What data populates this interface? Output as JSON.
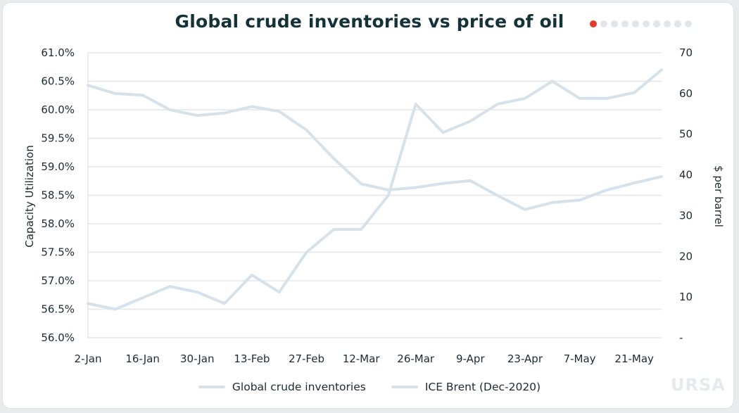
{
  "header": {
    "title": "Global crude inventories vs price of oil"
  },
  "pager": {
    "count": 10,
    "active_index": 0,
    "active_color": "#e5392c",
    "inactive_color": "#e3e6e8"
  },
  "logo": {
    "text": "URSA"
  },
  "colors": {
    "line": "#d6e1ea",
    "grid": "#e4e6e8",
    "text": "#1e2a30",
    "title": "#14323a"
  },
  "chart_data": {
    "type": "line",
    "title": "Global crude inventories vs price of oil",
    "xlabel": "",
    "x": [
      "2-Jan",
      "9-Jan",
      "16-Jan",
      "23-Jan",
      "30-Jan",
      "6-Feb",
      "13-Feb",
      "20-Feb",
      "27-Feb",
      "5-Mar",
      "12-Mar",
      "19-Mar",
      "26-Mar",
      "2-Apr",
      "9-Apr",
      "16-Apr",
      "23-Apr",
      "30-Apr",
      "7-May",
      "14-May",
      "21-May",
      "28-May"
    ],
    "x_tick_labels": [
      "2-Jan",
      "16-Jan",
      "30-Jan",
      "13-Feb",
      "27-Feb",
      "12-Mar",
      "26-Mar",
      "9-Apr",
      "23-Apr",
      "7-May",
      "21-May"
    ],
    "y_left": {
      "label": "Capacity Utilization",
      "ylim": [
        56.0,
        61.0
      ],
      "ticks": [
        "56.0%",
        "56.5%",
        "57.0%",
        "57.5%",
        "58.0%",
        "58.5%",
        "59.0%",
        "59.5%",
        "60.0%",
        "60.5%",
        "61.0%"
      ]
    },
    "y_right": {
      "label": "$ per barrel",
      "ylim": [
        0,
        70
      ],
      "ticks": [
        "-",
        "10",
        "20",
        "30",
        "40",
        "50",
        "60",
        "70"
      ]
    },
    "grid": true,
    "legend_position": "bottom",
    "series": [
      {
        "name": "Global crude inventories",
        "axis": "left",
        "color": "#d6e1ea",
        "values": [
          56.6,
          56.5,
          56.7,
          56.9,
          56.8,
          56.6,
          57.1,
          56.8,
          57.5,
          57.9,
          57.9,
          58.5,
          60.1,
          59.6,
          59.8,
          60.1,
          60.2,
          60.5,
          60.2,
          60.2,
          60.3,
          60.7
        ]
      },
      {
        "name": "ICE Brent (Dec-2020)",
        "axis": "right",
        "color": "#d6e1ea",
        "values": [
          62,
          60,
          59.6,
          56,
          54.6,
          55.2,
          56.8,
          55.6,
          51,
          44,
          37.8,
          36.3,
          36.9,
          37.9,
          38.6,
          34.9,
          31.5,
          33.2,
          33.8,
          36.3,
          38,
          39.6
        ]
      }
    ]
  }
}
